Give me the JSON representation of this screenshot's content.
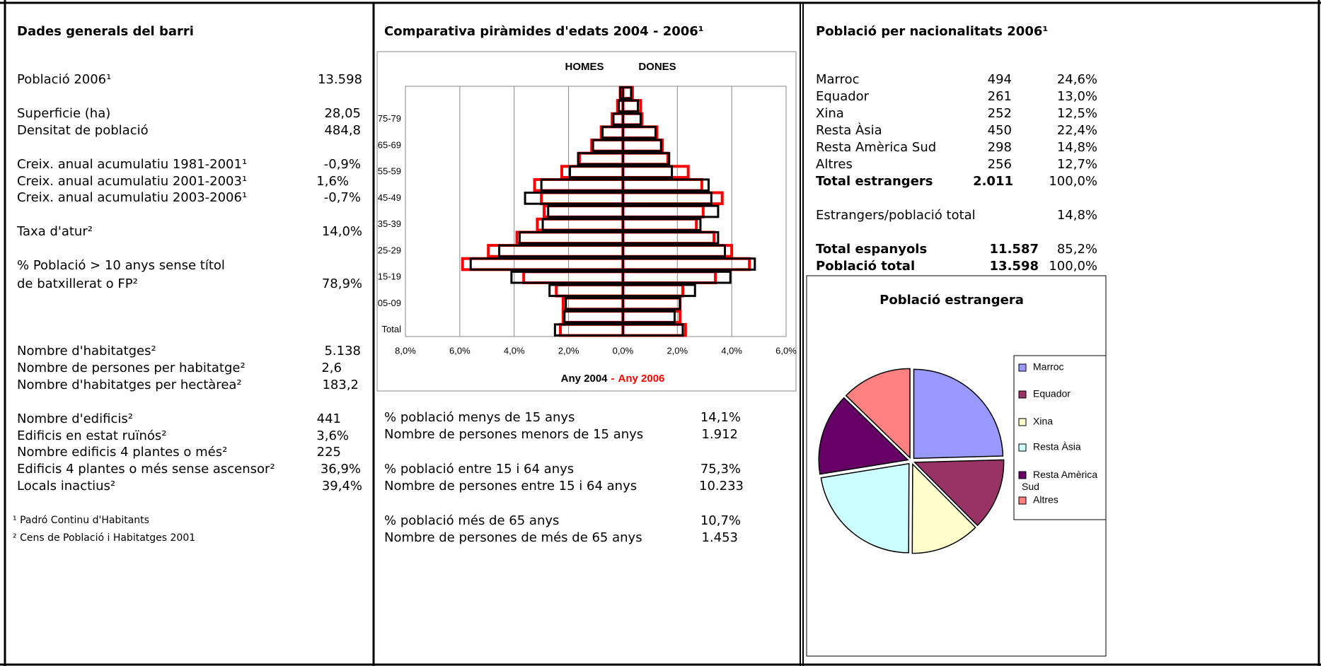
{
  "general": {
    "title": "Dades generals del barri",
    "rows": [
      {
        "label": "Població 2006¹",
        "value": "13.598"
      },
      {
        "label": "Superficie (ha)",
        "value": "28,05"
      },
      {
        "label": "Densitat de població",
        "value": "484,8"
      },
      {
        "label": "Creix. anual acumulatiu 1981-2001¹",
        "value": "-0,9%"
      },
      {
        "label": "Creix. anual acumulatiu 2001-2003¹",
        "value": "1,6%"
      },
      {
        "label": "Creix. anual acumulatiu 2003-2006¹",
        "value": "-0,7%"
      },
      {
        "label": "Taxa d'atur²",
        "value": "14,0%"
      },
      {
        "label": [
          "% Població > 10 anys sense títol",
          "de batxillerat o FP²"
        ],
        "value": "78,9%"
      },
      {
        "label": "Nombre d'habitatges²",
        "value": "5.138"
      },
      {
        "label": "Nombre de persones per habitatge²",
        "value": "2,6"
      },
      {
        "label": "Nombre d'habitatges per hectàrea²",
        "value": "183,2"
      },
      {
        "label": "Nombre d'edificis²",
        "value": "441"
      },
      {
        "label": "Edificis en estat ruïnós²",
        "value": "3,6%"
      },
      {
        "label": "Nombre edificis 4 plantes o més²",
        "value": "225"
      },
      {
        "label": "Edificis 4 plantes o més sense ascensor²",
        "value": "36,9%"
      },
      {
        "label": "Locals inactius²",
        "value": "39,4%"
      }
    ],
    "notes": [
      "¹ Padró Continu d'Habitants",
      "² Cens de Població i Habitatges 2001"
    ]
  },
  "ages": {
    "title": "Comparativa piràmides d'edats 2004 - 2006¹",
    "rows": [
      {
        "label": "% població menys de 15 anys",
        "value": "14,1%"
      },
      {
        "label": "Nombre de persones menors de 15 anys",
        "value": "1.912"
      },
      {
        "label": "% població entre 15 i 64 anys",
        "value": "75,3%"
      },
      {
        "label": "Nombre de persones entre 15 i 64 anys",
        "value": "10.233"
      },
      {
        "label": "% població més de 65 anys",
        "value": "10,7%"
      },
      {
        "label": "Nombre de persones de més de 65 anys",
        "value": "1.453"
      }
    ]
  },
  "nationalities": {
    "title": "Població per nacionalitats 2006¹",
    "rows": [
      [
        "Marroc",
        "494",
        "24,6%"
      ],
      [
        "Equador",
        "261",
        "13,0%"
      ],
      [
        "Xina",
        "252",
        "12,5%"
      ],
      [
        "Resta Àsia",
        "450",
        "22,4%"
      ],
      [
        "Resta Amèrica Sud",
        "298",
        "14,8%"
      ],
      [
        "Altres",
        "256",
        "12,7%"
      ]
    ],
    "total_foreign": [
      "Total estrangers",
      "2.011",
      "100,0%"
    ],
    "ratio": [
      "Estrangers/població total",
      "14,8%"
    ],
    "total_spanish": [
      "Total espanyols",
      "11.587",
      "85,2%"
    ],
    "total": [
      "Població total",
      "13.598",
      "100,0%"
    ]
  },
  "chart_data": [
    {
      "type": "pyramid",
      "side_labels": [
        "HOMES",
        "DONES"
      ],
      "categories": [
        "Total",
        null,
        "05-09",
        null,
        "15-19",
        null,
        "25-29",
        null,
        "35-39",
        null,
        "45-49",
        null,
        "55-59",
        null,
        "65-69",
        null,
        "75-79",
        null,
        null
      ],
      "series": [
        {
          "name": "Any 2006",
          "color": "#ff0000",
          "homes": [
            -2.3,
            -2.2,
            -2.2,
            -2.45,
            -3.65,
            -5.9,
            -4.95,
            -3.9,
            -3.15,
            -2.9,
            -3.0,
            -3.25,
            -2.25,
            -1.6,
            -1.15,
            -0.8,
            -0.4,
            -0.2,
            -0.1
          ],
          "dones": [
            2.3,
            2.1,
            2.1,
            2.2,
            3.4,
            4.65,
            4.0,
            3.35,
            2.7,
            2.95,
            3.65,
            2.9,
            2.4,
            1.65,
            1.45,
            1.25,
            0.7,
            0.65,
            0.35
          ]
        },
        {
          "name": "Any 2004",
          "color": "#000000",
          "homes": [
            -2.5,
            -2.15,
            -2.1,
            -2.7,
            -4.1,
            -5.6,
            -4.55,
            -3.8,
            -2.95,
            -2.75,
            -3.6,
            -3.0,
            -1.95,
            -1.65,
            -1.1,
            -0.75,
            -0.35,
            -0.15,
            -0.1
          ],
          "dones": [
            2.2,
            1.9,
            2.1,
            2.65,
            3.95,
            4.85,
            3.75,
            3.5,
            2.85,
            3.5,
            3.25,
            3.15,
            1.8,
            1.7,
            1.4,
            1.2,
            0.65,
            0.55,
            0.3
          ]
        }
      ],
      "legend_separator": "-",
      "xlim": [
        -8,
        6
      ],
      "xticks": [
        {
          "value": -8,
          "label": "8,0%"
        },
        {
          "value": -6,
          "label": "6,0%"
        },
        {
          "value": -4,
          "label": "4,0%"
        },
        {
          "value": -2,
          "label": "2,0%"
        },
        {
          "value": 0,
          "label": "0,0%"
        },
        {
          "value": 2,
          "label": "2,0%"
        },
        {
          "value": 4,
          "label": "4,0%"
        },
        {
          "value": 6,
          "label": "6,0%"
        }
      ],
      "grid": true
    },
    {
      "type": "pie",
      "title": "Població estrangera",
      "categories": [
        "Marroc",
        "Equador",
        "Xina",
        "Resta Àsia",
        "Resta Amèrica Sud",
        "Altres"
      ],
      "values": [
        494,
        261,
        252,
        450,
        298,
        256
      ],
      "colors": [
        "#9999ff",
        "#993366",
        "#ffffcc",
        "#ccffff",
        "#660066",
        "#ff8080"
      ]
    }
  ]
}
